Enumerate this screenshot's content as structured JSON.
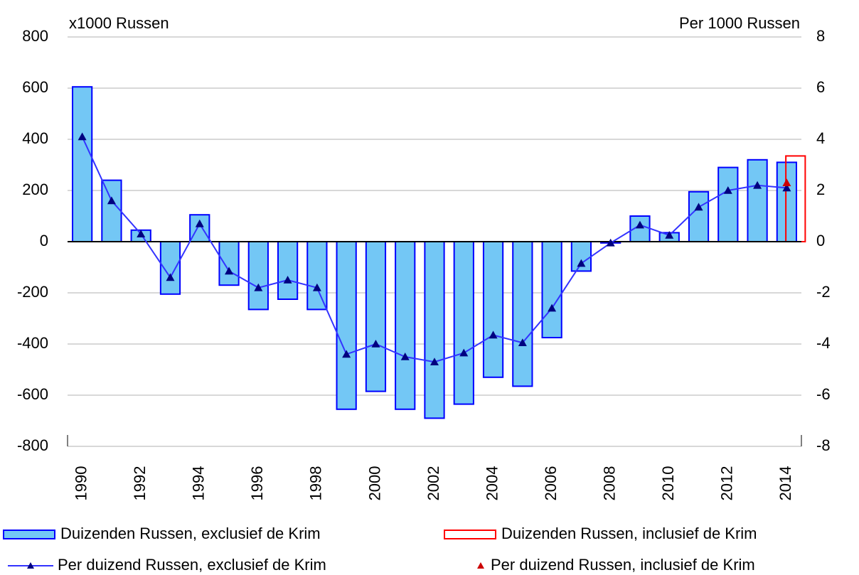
{
  "chart_data": {
    "type": "bar",
    "y_axis_title": "x1000 Russen",
    "y2_axis_title": "Per 1000 Russen",
    "categories": [
      "1990",
      null,
      "1992",
      null,
      "1994",
      null,
      "1996",
      null,
      "1998",
      null,
      "2000",
      null,
      "2002",
      null,
      "2004",
      null,
      "2006",
      null,
      "2008",
      null,
      "2010",
      null,
      "2012",
      null,
      "2014"
    ],
    "series": [
      {
        "name": "Duizenden Russen, exclusief de Krim",
        "type": "bar",
        "color": "#0000ff",
        "fill": "#73c7f5",
        "values": [
          605,
          240,
          45,
          -205,
          105,
          -170,
          -265,
          -225,
          -265,
          -655,
          -585,
          -655,
          -690,
          -635,
          -530,
          -565,
          -375,
          -115,
          -5,
          100,
          35,
          195,
          290,
          320,
          310
        ]
      },
      {
        "name": "Duizenden Russen, inclusief de Krim",
        "type": "bar",
        "color": "#ff0000",
        "values": [
          null,
          null,
          null,
          null,
          null,
          null,
          null,
          null,
          null,
          null,
          null,
          null,
          null,
          null,
          null,
          null,
          null,
          null,
          null,
          null,
          null,
          null,
          null,
          null,
          335
        ]
      },
      {
        "name": "Per duizend Russen, exclusief de Krim",
        "type": "line",
        "axis": "y2",
        "color": "#3333ff",
        "marker_color": "#000080",
        "values": [
          4.1,
          1.6,
          0.3,
          -1.4,
          0.7,
          -1.15,
          -1.8,
          -1.5,
          -1.8,
          -4.4,
          -4.0,
          -4.5,
          -4.7,
          -4.35,
          -3.65,
          -3.95,
          -2.6,
          -0.85,
          -0.05,
          0.65,
          0.25,
          1.35,
          2.0,
          2.2,
          2.1
        ]
      },
      {
        "name": "Per duizend Russen, inclusief de Krim",
        "type": "marker",
        "axis": "y2",
        "color": "#cc0000",
        "values": [
          null,
          null,
          null,
          null,
          null,
          null,
          null,
          null,
          null,
          null,
          null,
          null,
          null,
          null,
          null,
          null,
          null,
          null,
          null,
          null,
          null,
          null,
          null,
          null,
          2.3
        ]
      }
    ],
    "ylim": [
      -800,
      800
    ],
    "yticks": [
      -800,
      -600,
      -400,
      -200,
      0,
      200,
      400,
      600,
      800
    ],
    "y2lim": [
      -8,
      8
    ],
    "y2ticks": [
      -8,
      -6,
      -4,
      -2,
      0,
      2,
      4,
      6,
      8
    ],
    "grid": true
  }
}
